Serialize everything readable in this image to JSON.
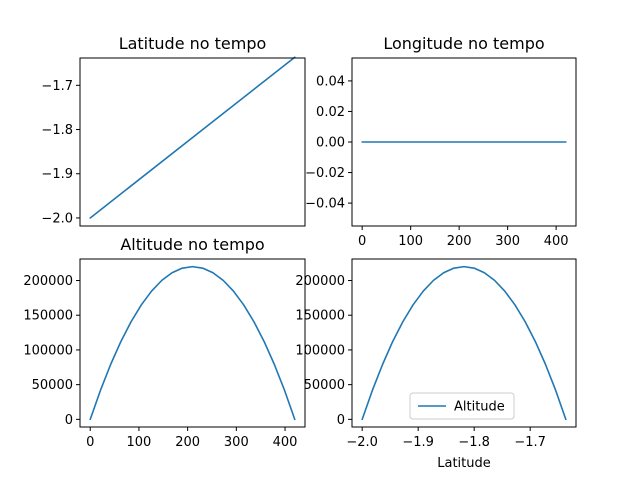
{
  "colors": {
    "series": "#1f77b4",
    "axes": "#000000",
    "background": "#ffffff"
  },
  "chart_data": [
    {
      "type": "line",
      "title": "Latitude no tempo",
      "xlabel": "",
      "ylabel": "",
      "xlim": [
        -21,
        441
      ],
      "ylim": [
        -2.0182,
        -1.6382
      ],
      "xticks": [],
      "yticks": [
        -2.0,
        -1.9,
        -1.8,
        -1.7
      ],
      "ytick_labels": [
        "−2.0",
        "−1.9",
        "−1.8",
        "−1.7"
      ],
      "series": [
        {
          "x": [
            0,
            420
          ],
          "y": [
            -2.0,
            -1.6364
          ]
        }
      ]
    },
    {
      "type": "line",
      "title": "Longitude no tempo",
      "xlabel": "",
      "ylabel": "",
      "xlim": [
        -21,
        441
      ],
      "ylim": [
        -0.055,
        0.055
      ],
      "xticks": [
        0,
        100,
        200,
        300,
        400
      ],
      "xtick_labels": [
        "0",
        "100",
        "200",
        "300",
        "400"
      ],
      "yticks": [
        -0.04,
        -0.02,
        0.0,
        0.02,
        0.04
      ],
      "ytick_labels": [
        "−0.04",
        "−0.02",
        "0.00",
        "0.02",
        "0.04"
      ],
      "series": [
        {
          "x": [
            0,
            420
          ],
          "y": [
            0.0,
            0.0
          ]
        }
      ]
    },
    {
      "type": "line",
      "title": "Altitude no tempo",
      "xlabel": "",
      "ylabel": "",
      "xlim": [
        -21,
        441
      ],
      "ylim": [
        -11000,
        231000
      ],
      "xticks": [
        0,
        100,
        200,
        300,
        400
      ],
      "xtick_labels": [
        "0",
        "100",
        "200",
        "300",
        "400"
      ],
      "yticks": [
        0,
        50000,
        100000,
        150000,
        200000
      ],
      "ytick_labels": [
        "0",
        "50000",
        "100000",
        "150000",
        "200000"
      ],
      "series": [
        {
          "x": [
            0,
            21,
            42,
            63,
            84,
            105,
            126,
            147,
            168,
            189,
            210,
            231,
            252,
            273,
            294,
            315,
            336,
            357,
            378,
            399,
            420
          ],
          "y": [
            0,
            41800,
            79200,
            112200,
            140800,
            165000,
            184800,
            200200,
            211200,
            217800,
            220000,
            217800,
            211200,
            200200,
            184800,
            165000,
            140800,
            112200,
            79200,
            41800,
            0
          ]
        }
      ]
    },
    {
      "type": "line",
      "title": "",
      "xlabel": "Latitude",
      "ylabel": "",
      "xlim": [
        -2.0182,
        -1.6182
      ],
      "ylim": [
        -11000,
        231000
      ],
      "xticks": [
        -2.0,
        -1.9,
        -1.8,
        -1.7
      ],
      "xtick_labels": [
        "−2.0",
        "−1.9",
        "−1.8",
        "−1.7"
      ],
      "yticks": [
        0,
        50000,
        100000,
        150000,
        200000
      ],
      "ytick_labels": [
        "0",
        "50000",
        "100000",
        "150000",
        "200000"
      ],
      "legend": {
        "placement": "lower-center",
        "entries": [
          "Altitude"
        ]
      },
      "series": [
        {
          "name": "Altitude",
          "x": [
            -2.0,
            -1.9818,
            -1.9636,
            -1.9455,
            -1.9273,
            -1.9091,
            -1.8909,
            -1.8727,
            -1.8545,
            -1.8364,
            -1.8182,
            -1.8,
            -1.7818,
            -1.7636,
            -1.7455,
            -1.7273,
            -1.7091,
            -1.6909,
            -1.6727,
            -1.6545,
            -1.6364
          ],
          "y": [
            0,
            41800,
            79200,
            112200,
            140800,
            165000,
            184800,
            200200,
            211200,
            217800,
            220000,
            217800,
            211200,
            200200,
            184800,
            165000,
            140800,
            112200,
            79200,
            41800,
            0
          ]
        }
      ]
    }
  ]
}
